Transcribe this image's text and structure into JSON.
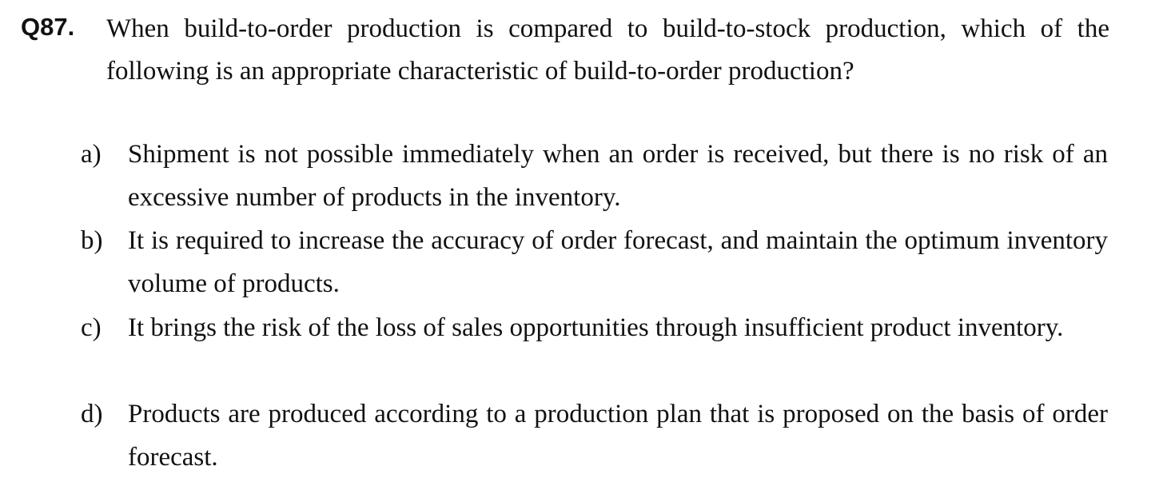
{
  "question": {
    "number": "Q87.",
    "text": "When build-to-order production is compared to build-to-stock production, which of the following is an appropriate characteristic of build-to-order production?"
  },
  "options": [
    {
      "letter": "a)",
      "text": "Shipment is not possible immediately when an order is received, but there is no risk of an excessive number of products in the inventory."
    },
    {
      "letter": "b)",
      "text": "It is required to increase the accuracy of order forecast, and maintain the optimum inventory volume of products."
    },
    {
      "letter": "c)",
      "text": "It brings the risk of the loss of sales opportunities through insufficient product inventory."
    },
    {
      "letter": "d)",
      "text": "Products are produced according to a production plan that is proposed on the basis of order forecast."
    }
  ]
}
